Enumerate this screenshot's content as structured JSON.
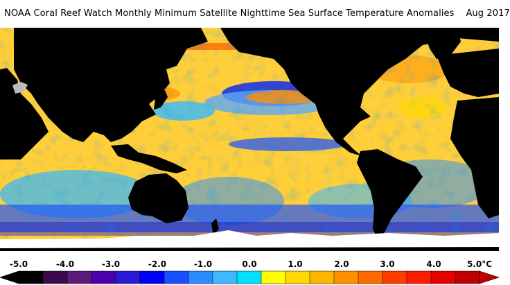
{
  "title": "NOAA Coral Reef Watch Monthly Minimum Satellite Nighttime Sea Surface Temperature Anomalies    Aug 2017",
  "legend": {
    "ticks": [
      "-5.0",
      "-4.0",
      "-3.0",
      "-2.0",
      "-1.0",
      "0.0",
      "1.0",
      "2.0",
      "3.0",
      "4.0",
      "5.0"
    ],
    "unit": "°C",
    "colors": [
      "#000000",
      "#3a0a4a",
      "#5a1a7a",
      "#4b00b0",
      "#2a1ad8",
      "#0000ff",
      "#1a4fff",
      "#2a8cff",
      "#3fb8ff",
      "#00e0ff",
      "#ffff00",
      "#ffd800",
      "#ffb400",
      "#ff9000",
      "#ff6a00",
      "#ff3c00",
      "#ff1a00",
      "#e80000",
      "#c00000"
    ]
  },
  "map": {
    "ocean_base": "#ffcf3a",
    "land": "#000000",
    "ice": "#ffffff"
  }
}
